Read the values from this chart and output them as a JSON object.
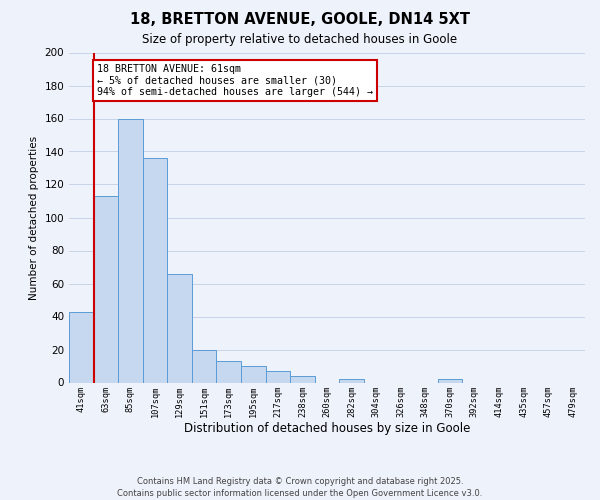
{
  "title": "18, BRETTON AVENUE, GOOLE, DN14 5XT",
  "subtitle": "Size of property relative to detached houses in Goole",
  "xlabel": "Distribution of detached houses by size in Goole",
  "ylabel": "Number of detached properties",
  "bin_labels": [
    "41sqm",
    "63sqm",
    "85sqm",
    "107sqm",
    "129sqm",
    "151sqm",
    "173sqm",
    "195sqm",
    "217sqm",
    "238sqm",
    "260sqm",
    "282sqm",
    "304sqm",
    "326sqm",
    "348sqm",
    "370sqm",
    "392sqm",
    "414sqm",
    "435sqm",
    "457sqm",
    "479sqm"
  ],
  "bar_values": [
    43,
    113,
    160,
    136,
    66,
    20,
    13,
    10,
    7,
    4,
    0,
    2,
    0,
    0,
    0,
    2,
    0,
    0,
    0,
    0,
    0
  ],
  "bar_color": "#c5d8f0",
  "bar_edge_color": "#5b9bd5",
  "ylim": [
    0,
    200
  ],
  "yticks": [
    0,
    20,
    40,
    60,
    80,
    100,
    120,
    140,
    160,
    180,
    200
  ],
  "property_line_x": 1,
  "property_line_color": "#cc0000",
  "annotation_line1": "18 BRETTON AVENUE: 61sqm",
  "annotation_line2": "← 5% of detached houses are smaller (30)",
  "annotation_line3": "94% of semi-detached houses are larger (544) →",
  "annotation_box_color": "#ffffff",
  "annotation_border_color": "#cc0000",
  "footnote1": "Contains HM Land Registry data © Crown copyright and database right 2025.",
  "footnote2": "Contains public sector information licensed under the Open Government Licence v3.0.",
  "bg_color": "#eef2fb",
  "grid_color": "#c8d4e8"
}
